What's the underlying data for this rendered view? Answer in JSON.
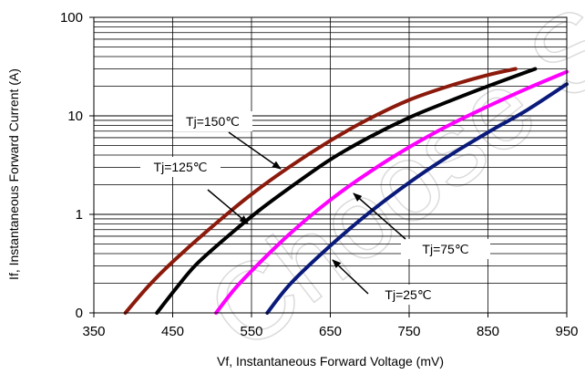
{
  "chart_data": {
    "type": "line",
    "title": "",
    "xlabel": "Vf, Instantaneous Forward  Voltage (mV)",
    "ylabel": "If, Instantaneous Forward Current (A)",
    "xlim": [
      350,
      950
    ],
    "ylim": [
      0.1,
      100
    ],
    "yscale": "log",
    "x_ticks": [
      "350",
      "450",
      "550",
      "650",
      "750",
      "850",
      "950"
    ],
    "y_ticks": [
      {
        "value": 0.1,
        "label": "0"
      },
      {
        "value": 1,
        "label": "1"
      },
      {
        "value": 10,
        "label": "10"
      },
      {
        "value": 100,
        "label": "100"
      }
    ],
    "grid": true,
    "series": [
      {
        "name": "Tj=150℃",
        "color": "#8b1a0c",
        "x": [
          390,
          420,
          450,
          500,
          550,
          600,
          650,
          700,
          750,
          800,
          850,
          885
        ],
        "y": [
          0.1,
          0.19,
          0.33,
          0.75,
          1.6,
          3.1,
          5.6,
          9.4,
          14.5,
          20,
          26,
          30
        ]
      },
      {
        "name": "Tj=125℃",
        "color": "#000000",
        "x": [
          430,
          455,
          480,
          520,
          560,
          600,
          650,
          700,
          750,
          800,
          850,
          910
        ],
        "y": [
          0.1,
          0.18,
          0.31,
          0.6,
          1.1,
          1.9,
          3.6,
          6.1,
          9.6,
          14,
          20,
          30
        ]
      },
      {
        "name": "Tj=75℃",
        "color": "#ff00ff",
        "x": [
          505,
          530,
          560,
          600,
          650,
          700,
          750,
          800,
          850,
          900,
          950
        ],
        "y": [
          0.1,
          0.18,
          0.32,
          0.65,
          1.4,
          2.7,
          4.8,
          8.0,
          12.5,
          19,
          28
        ]
      },
      {
        "name": "Tj=25℃",
        "color": "#0a1a7a",
        "x": [
          570,
          600,
          650,
          700,
          750,
          800,
          850,
          900,
          950
        ],
        "y": [
          0.1,
          0.2,
          0.48,
          1.05,
          2.1,
          3.9,
          6.8,
          11.5,
          21
        ]
      }
    ],
    "annotations": [
      {
        "text": "Tj=150℃",
        "series": 0
      },
      {
        "text": "Tj=125℃",
        "series": 1
      },
      {
        "text": "Tj=75℃",
        "series": 2
      },
      {
        "text": "Tj=25℃",
        "series": 3
      }
    ]
  },
  "watermark": "Choose S"
}
